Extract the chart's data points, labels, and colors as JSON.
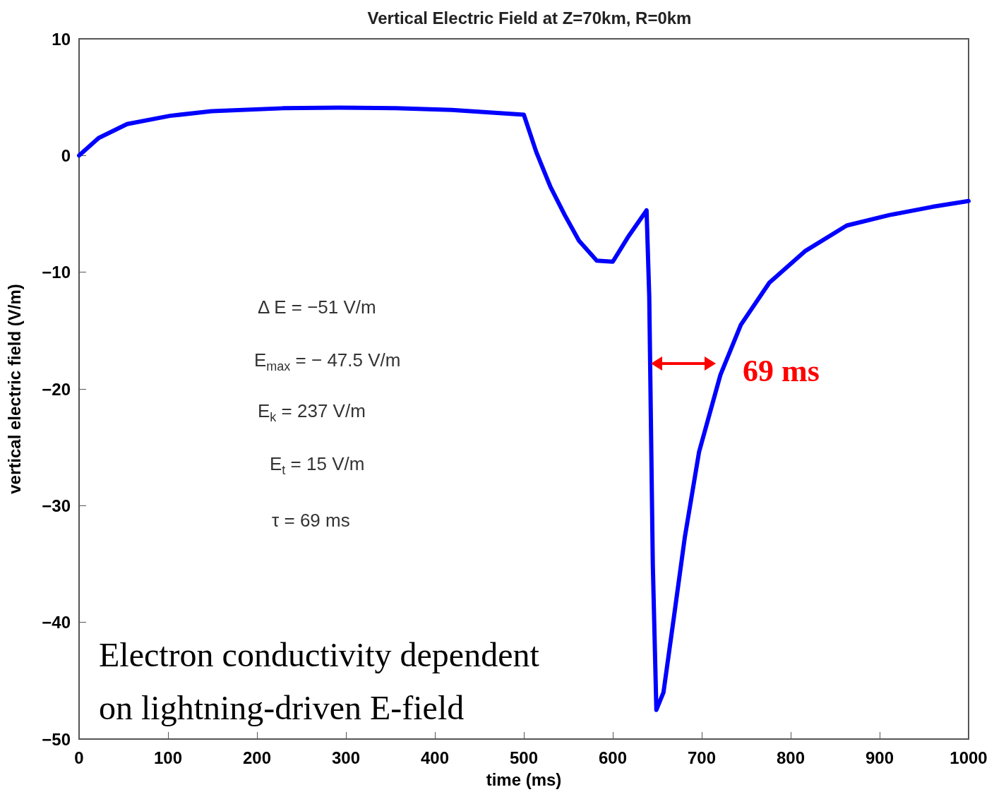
{
  "chart_data": {
    "type": "line",
    "title": "Vertical Electric Field at Z=70km, R=0km",
    "xlabel": "time (ms)",
    "ylabel": "vertical electric field (V/m)",
    "x": [
      0,
      22,
      54,
      102,
      149,
      229,
      292,
      356,
      419,
      500,
      514,
      530,
      546,
      562,
      582,
      600,
      617,
      638,
      641,
      645,
      649,
      657,
      669,
      681,
      697,
      721,
      744,
      776,
      816,
      863,
      911,
      959,
      1000
    ],
    "series": [
      {
        "color": "#0000ff",
        "values": [
          0,
          1.5,
          2.7,
          3.4,
          3.8,
          4.05,
          4.1,
          4.05,
          3.9,
          3.5,
          0.3,
          -2.7,
          -5.1,
          -7.3,
          -9.0,
          -9.1,
          -7.0,
          -4.7,
          -12.1,
          -35,
          -47.5,
          -46,
          -39.4,
          -32.7,
          -25.4,
          -18.8,
          -14.5,
          -10.9,
          -8.2,
          -6.0,
          -5.1,
          -4.4,
          -3.9
        ]
      }
    ],
    "xlim": [
      0,
      1000
    ],
    "xticks": [
      0,
      100,
      200,
      300,
      400,
      500,
      600,
      700,
      800,
      900,
      1000
    ],
    "ylim": [
      -50,
      10
    ],
    "yticks": [
      -50,
      -40,
      -30,
      -20,
      -10,
      0,
      10
    ],
    "marker": "none",
    "line_style": "solid",
    "annotations": [
      "Δ E = −51 V/m",
      "E$_{max}$ = − 47.5 V/m",
      "E$_{k}$ = 237 V/m",
      "E$_{t}$ = 15 V/m",
      "τ = 69 ms",
      "Electron conductivity dependent",
      "on lightning-driven E-field",
      "69 ms"
    ]
  }
}
